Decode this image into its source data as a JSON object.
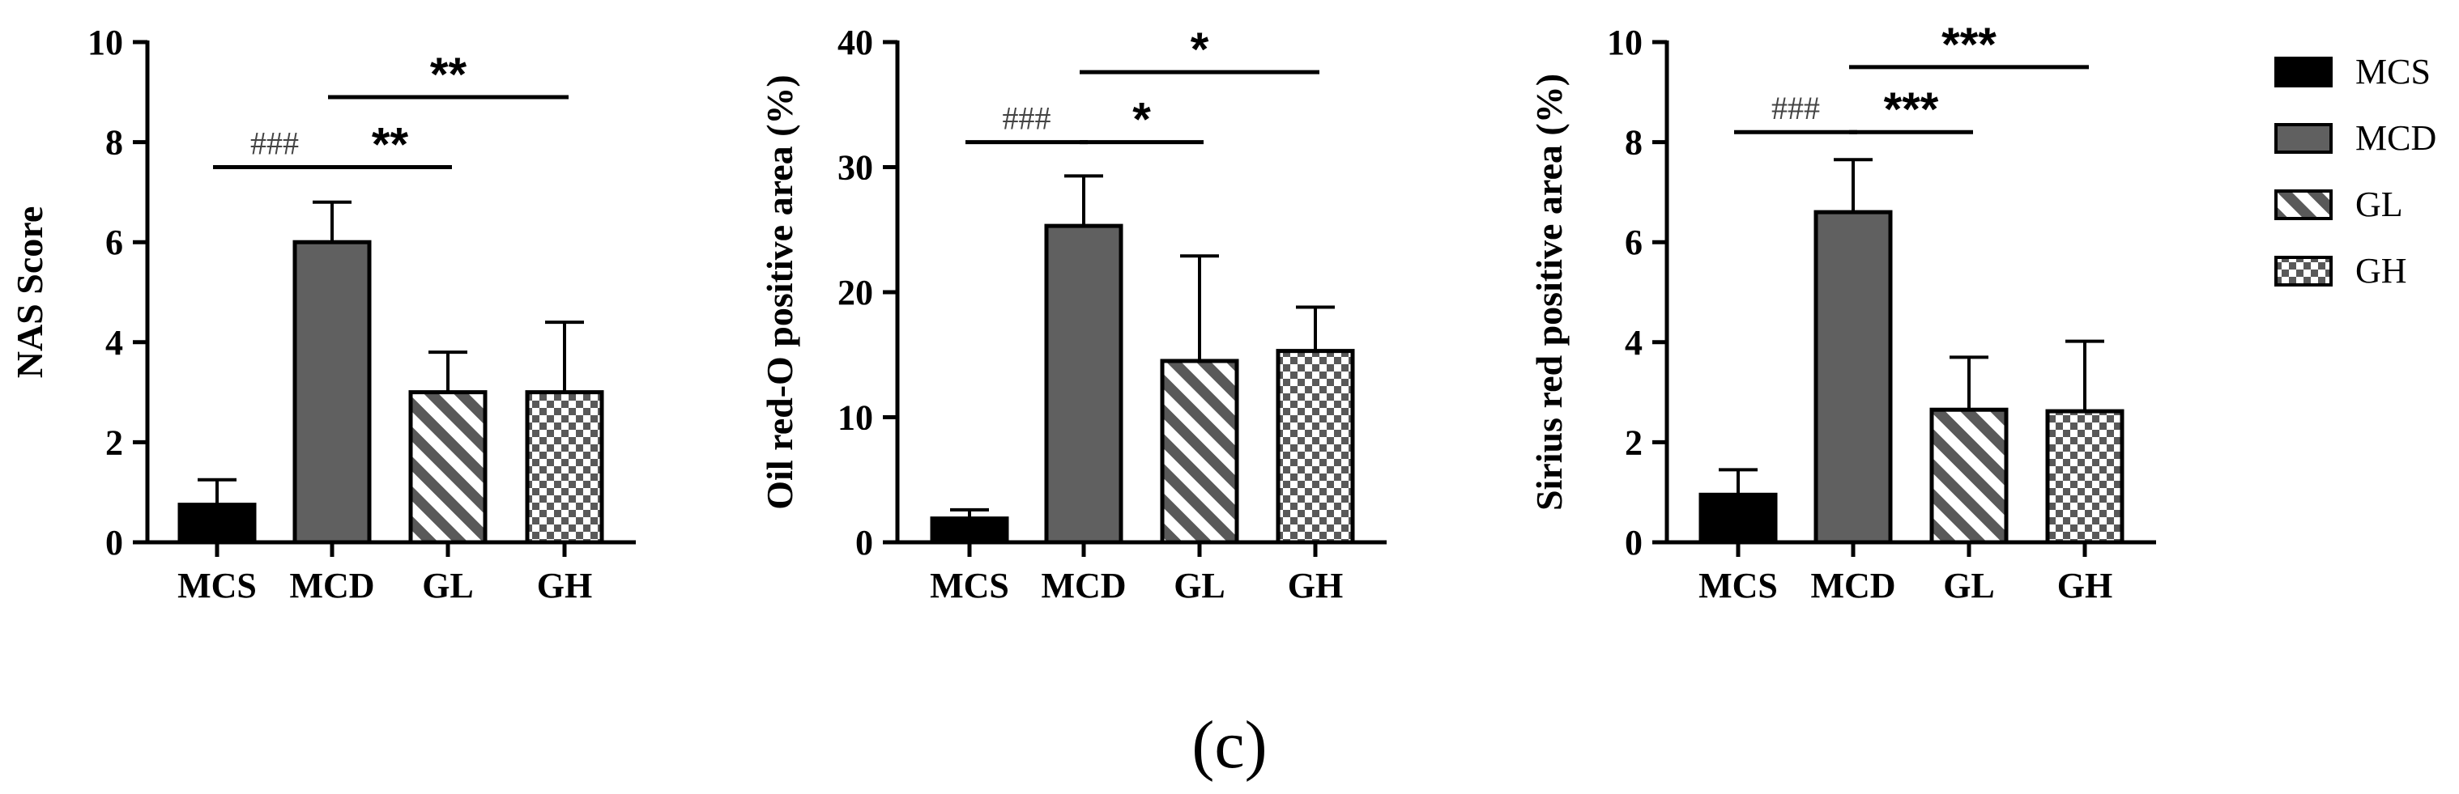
{
  "panel_label": "(c)",
  "legend": [
    {
      "name": "MCS",
      "pattern": "solid-black"
    },
    {
      "name": "MCD",
      "pattern": "solid-gray"
    },
    {
      "name": "GL",
      "pattern": "diagonal-stripes"
    },
    {
      "name": "GH",
      "pattern": "checkerboard"
    }
  ],
  "colors": {
    "mcs": "#000000",
    "mcd": "#606060",
    "pattern_dark": "#595959",
    "pattern_light": "#ffffff"
  },
  "chart_data": [
    {
      "type": "bar",
      "categories": [
        "MCS",
        "MCD",
        "GL",
        "GH"
      ],
      "values": [
        0.75,
        6.0,
        3.0,
        3.0
      ],
      "errors": [
        0.5,
        0.8,
        0.8,
        1.4
      ],
      "ylabel": "NAS Score",
      "ylim": [
        0,
        10
      ],
      "yticks": [
        "0",
        "2",
        "4",
        "6",
        "8",
        "10"
      ],
      "significance": [
        {
          "from": 0,
          "to": 1,
          "y": 7.5,
          "label": "###",
          "style": "hash"
        },
        {
          "from": 1,
          "to": 2,
          "y": 7.5,
          "label": "**",
          "style": "star"
        },
        {
          "from": 1,
          "to": 3,
          "y": 8.9,
          "label": "**",
          "style": "star"
        }
      ]
    },
    {
      "type": "bar",
      "categories": [
        "MCS",
        "MCD",
        "GL",
        "GH"
      ],
      "values": [
        1.9,
        25.3,
        14.5,
        15.3
      ],
      "errors": [
        0.7,
        4.0,
        8.4,
        3.5
      ],
      "ylabel": "Oil red-O positive area (%)",
      "ylim": [
        0,
        40
      ],
      "yticks": [
        "0",
        "10",
        "20",
        "30",
        "40"
      ],
      "significance": [
        {
          "from": 0,
          "to": 1,
          "y": 32.0,
          "label": "###",
          "style": "hash"
        },
        {
          "from": 1,
          "to": 2,
          "y": 32.0,
          "label": "*",
          "style": "star"
        },
        {
          "from": 1,
          "to": 3,
          "y": 37.6,
          "label": "*",
          "style": "star"
        }
      ]
    },
    {
      "type": "bar",
      "categories": [
        "MCS",
        "MCD",
        "GL",
        "GH"
      ],
      "values": [
        0.95,
        6.6,
        2.65,
        2.62
      ],
      "errors": [
        0.5,
        1.05,
        1.05,
        1.4
      ],
      "ylabel": "Sirius red positive area (%)",
      "ylim": [
        0,
        10
      ],
      "yticks": [
        "0",
        "2",
        "4",
        "6",
        "8",
        "10"
      ],
      "significance": [
        {
          "from": 0,
          "to": 1,
          "y": 8.2,
          "label": "###",
          "style": "hash"
        },
        {
          "from": 1,
          "to": 2,
          "y": 8.2,
          "label": "***",
          "style": "star"
        },
        {
          "from": 1,
          "to": 3,
          "y": 9.5,
          "label": "***",
          "style": "star"
        }
      ]
    }
  ]
}
